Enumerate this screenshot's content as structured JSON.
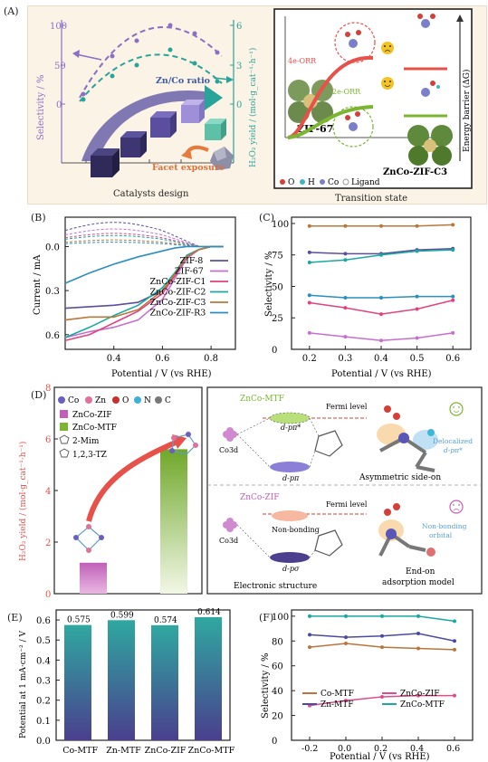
{
  "colors": {
    "purple": "#8a6fc4",
    "teal": "#2aa39a",
    "zif8": "#5b4e9e",
    "zif67": "#c76fd0",
    "c1": "#e0437f",
    "c2": "#1aa8a0",
    "c3": "#b9783b",
    "r3": "#2a8fc0",
    "red": "#e8504a",
    "green": "#7bb532",
    "brown": "#b8763c",
    "pink": "#d94f8e",
    "indigo": "#4b4aa2"
  },
  "panelA": {
    "label": "(A)",
    "y_left": "Selectivity / %",
    "y_right": "H₂O₂ yield / (mol·g_cat⁻¹·h⁻¹)",
    "left_ticks": [
      "100",
      "50",
      "0"
    ],
    "right_ticks": [
      "6",
      "3",
      "0"
    ],
    "arrow_label": "Zn/Co ratio",
    "facet_label": "Facet exposure",
    "x_caption": "Catalysts design",
    "right_caption": "Transition state",
    "path_4e": "4e-ORR",
    "path_2e": "2e-ORR",
    "zif67": "ZIF-67",
    "znco": "ZnCo-ZIF-C3",
    "energy": "Energy barrier (ΔG)",
    "legend": [
      "O",
      "H",
      "Co",
      "Ligand"
    ]
  },
  "chart_data": [
    {
      "panel": "B",
      "type": "line",
      "xlabel": "Potential / V (vs RHE)",
      "ylabel": "Current / mA",
      "xlim": [
        0.2,
        0.9
      ],
      "ylim": [
        -0.7,
        0.2
      ],
      "x_ticks": [
        "0.4",
        "0.6",
        "0.8"
      ],
      "y_ticks": [
        "0.0",
        "0.3",
        "0.6"
      ],
      "series": [
        {
          "name": "ZIF-8",
          "x": [
            0.2,
            0.3,
            0.4,
            0.5,
            0.6,
            0.65,
            0.7,
            0.75,
            0.8,
            0.85
          ],
          "y": [
            -0.42,
            -0.41,
            -0.4,
            -0.38,
            -0.3,
            -0.2,
            -0.08,
            -0.02,
            0.0,
            0.0
          ]
        },
        {
          "name": "ZIF-67",
          "x": [
            0.2,
            0.3,
            0.4,
            0.5,
            0.6,
            0.65,
            0.7,
            0.75,
            0.8,
            0.85
          ],
          "y": [
            -0.62,
            -0.58,
            -0.55,
            -0.5,
            -0.36,
            -0.22,
            -0.08,
            -0.02,
            0.0,
            0.0
          ]
        },
        {
          "name": "ZnCo-ZIF-C1",
          "x": [
            0.2,
            0.3,
            0.4,
            0.5,
            0.6,
            0.65,
            0.7,
            0.75,
            0.8,
            0.85
          ],
          "y": [
            -0.64,
            -0.6,
            -0.52,
            -0.44,
            -0.32,
            -0.2,
            -0.07,
            -0.02,
            0.0,
            0.0
          ]
        },
        {
          "name": "ZnCo-ZIF-C2",
          "x": [
            0.2,
            0.3,
            0.4,
            0.5,
            0.6,
            0.65,
            0.7,
            0.75,
            0.8,
            0.85
          ],
          "y": [
            -0.62,
            -0.55,
            -0.47,
            -0.4,
            -0.28,
            -0.18,
            -0.06,
            -0.02,
            0.0,
            0.0
          ]
        },
        {
          "name": "ZnCo-ZIF-C3",
          "x": [
            0.2,
            0.3,
            0.4,
            0.5,
            0.6,
            0.65,
            0.7,
            0.75,
            0.8,
            0.85
          ],
          "y": [
            -0.5,
            -0.48,
            -0.48,
            -0.43,
            -0.3,
            -0.19,
            -0.07,
            -0.02,
            0.0,
            0.0
          ]
        },
        {
          "name": "ZnCo-ZIF-R3",
          "x": [
            0.2,
            0.3,
            0.4,
            0.5,
            0.6,
            0.65,
            0.7,
            0.75,
            0.8,
            0.85
          ],
          "y": [
            -0.25,
            -0.18,
            -0.12,
            -0.07,
            -0.03,
            -0.01,
            0.0,
            0.0,
            0.0,
            0.0
          ]
        }
      ],
      "ring_series": [
        {
          "y_start": 0.11,
          "peak_x": 0.55
        },
        {
          "y_start": 0.08,
          "peak_x": 0.55
        },
        {
          "y_start": 0.06,
          "peak_x": 0.55
        },
        {
          "y_start": 0.05,
          "peak_x": 0.55
        },
        {
          "y_start": 0.03,
          "peak_x": 0.55
        },
        {
          "y_start": 0.02,
          "peak_x": 0.55
        }
      ]
    },
    {
      "panel": "C",
      "type": "line",
      "xlabel": "Potential / V (vs RHE)",
      "ylabel": "Selectivity / %",
      "x": [
        0.2,
        0.3,
        0.4,
        0.5,
        0.6
      ],
      "xlim": [
        0.15,
        0.65
      ],
      "ylim": [
        0,
        105
      ],
      "y_ticks": [
        0,
        25,
        50,
        75,
        100
      ],
      "series": [
        {
          "name": "ZnCo-ZIF-C3",
          "values": [
            98,
            98,
            98,
            98,
            99
          ]
        },
        {
          "name": "ZIF-8",
          "values": [
            77,
            76,
            76,
            79,
            80
          ]
        },
        {
          "name": "ZnCo-ZIF-C2",
          "values": [
            69,
            71,
            75,
            78,
            79
          ]
        },
        {
          "name": "ZnCo-ZIF-R3",
          "values": [
            43,
            41,
            41,
            42,
            42
          ]
        },
        {
          "name": "ZnCo-ZIF-C1",
          "values": [
            37,
            33,
            28,
            32,
            39
          ]
        },
        {
          "name": "ZIF-67",
          "values": [
            13,
            10,
            7,
            9,
            13
          ]
        }
      ]
    },
    {
      "panel": "D",
      "type": "bar",
      "ylabel": "H₂O₂ yield / (mol·g_cat⁻¹·h⁻¹)",
      "ylim": [
        0,
        8
      ],
      "y_ticks": [
        0,
        2,
        4,
        6,
        8
      ],
      "categories": [
        "ZnCo-ZIF",
        "ZnCo-MTF"
      ],
      "values": [
        1.2,
        5.6
      ]
    },
    {
      "panel": "E",
      "type": "bar",
      "ylabel": "Potential at 1 mA·cm⁻² / V",
      "ylim": [
        0,
        0.65
      ],
      "y_ticks": [
        "0.0",
        "0.1",
        "0.2",
        "0.3",
        "0.4",
        "0.5",
        "0.6"
      ],
      "categories": [
        "Co-MTF",
        "Zn-MTF",
        "ZnCo-ZIF",
        "ZnCo-MTF"
      ],
      "values": [
        0.575,
        0.599,
        0.574,
        0.614
      ],
      "labels": [
        "0.575",
        "0.599",
        "0.574",
        "0.614"
      ]
    },
    {
      "panel": "F",
      "type": "line",
      "xlabel": "Potential / V (vs RHE)",
      "ylabel": "Selectivity / %",
      "x": [
        -0.2,
        0.0,
        0.2,
        0.4,
        0.6
      ],
      "xlim": [
        -0.3,
        0.7
      ],
      "ylim": [
        0,
        105
      ],
      "x_ticks": [
        "-0.2",
        "0.0",
        "0.2",
        "0.4",
        "0.6"
      ],
      "y_ticks": [
        0,
        20,
        40,
        60,
        80,
        100
      ],
      "series": [
        {
          "name": "ZnCo-MTF",
          "values": [
            100,
            100,
            100,
            100,
            96
          ]
        },
        {
          "name": "Zn-MTF",
          "values": [
            85,
            83,
            84,
            86,
            80
          ]
        },
        {
          "name": "Co-MTF",
          "values": [
            75,
            78,
            75,
            74,
            73
          ]
        },
        {
          "name": "ZnCo-ZIF",
          "values": [
            28,
            32,
            35,
            36,
            36
          ]
        }
      ],
      "legend": [
        "Co-MTF",
        "ZnCo-ZIF",
        "Zn-MTF",
        "ZnCo-MTF"
      ]
    }
  ],
  "panelD": {
    "label": "(D)",
    "legend": [
      "Co",
      "Zn",
      "O",
      "N",
      "C"
    ],
    "bar_legend": [
      "ZnCo-ZIF",
      "ZnCo-MTF"
    ],
    "ligands": [
      "2-Mim",
      "1,2,3-TZ"
    ]
  },
  "panelD_right": {
    "mtf_title": "ZnCo-MTF",
    "zif_title": "ZnCo-ZIF",
    "fermi": "Fermi level",
    "co3d": "Co3d",
    "dpi_star": "d-pπ*",
    "dpi": "d-pπ",
    "dsigma": "d-pσ",
    "nonbonding": "Non-bonding",
    "delocalized": "Delocalized",
    "nonbonding_orbital_1": "Non-bonding",
    "nonbonding_orbital_2": "orbital",
    "asym": "Asymmetric side-on",
    "endon_1": "End-on",
    "endon_2": "adsorption model",
    "electronic": "Electronic structure"
  },
  "labels": {
    "B": "(B)",
    "C": "(C)",
    "E": "(E)",
    "F": "(F)"
  }
}
